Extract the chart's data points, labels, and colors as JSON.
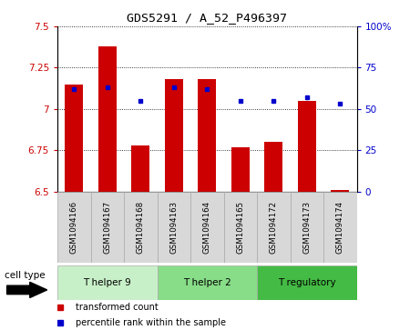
{
  "title": "GDS5291 / A_52_P496397",
  "samples": [
    "GSM1094166",
    "GSM1094167",
    "GSM1094168",
    "GSM1094163",
    "GSM1094164",
    "GSM1094165",
    "GSM1094172",
    "GSM1094173",
    "GSM1094174"
  ],
  "red_values": [
    7.15,
    7.38,
    6.78,
    7.18,
    7.18,
    6.77,
    6.8,
    7.05,
    6.51
  ],
  "blue_values": [
    62,
    63,
    55,
    63,
    62,
    55,
    55,
    57,
    53
  ],
  "ylim_left": [
    6.5,
    7.5
  ],
  "ylim_right": [
    0,
    100
  ],
  "yticks_left": [
    6.5,
    6.75,
    7.0,
    7.25,
    7.5
  ],
  "yticks_right": [
    0,
    25,
    50,
    75,
    100
  ],
  "ytick_labels_left": [
    "6.5",
    "6.75",
    "7",
    "7.25",
    "7.5"
  ],
  "ytick_labels_right": [
    "0",
    "25",
    "50",
    "75",
    "100%"
  ],
  "groups": [
    {
      "label": "T helper 9",
      "indices": [
        0,
        1,
        2
      ],
      "color": "#c8f0c8"
    },
    {
      "label": "T helper 2",
      "indices": [
        3,
        4,
        5
      ],
      "color": "#88dd88"
    },
    {
      "label": "T regulatory",
      "indices": [
        6,
        7,
        8
      ],
      "color": "#44bb44"
    }
  ],
  "cell_type_label": "cell type",
  "bar_color": "#cc0000",
  "dot_color": "#0000cc",
  "bar_width": 0.55,
  "bar_base": 6.5,
  "tick_label_color_left": "#cc0000",
  "tick_label_color_right": "#0000cc",
  "legend_items": [
    "transformed count",
    "percentile rank within the sample"
  ],
  "legend_colors": [
    "#cc0000",
    "#0000cc"
  ]
}
